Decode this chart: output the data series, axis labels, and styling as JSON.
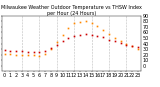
{
  "title": "Milwaukee Weather Outdoor Temperature vs THSW Index per Hour (24 Hours)",
  "hours": [
    0,
    1,
    2,
    3,
    4,
    5,
    6,
    7,
    8,
    9,
    10,
    11,
    12,
    13,
    14,
    15,
    16,
    17,
    18,
    19,
    20,
    21,
    22,
    23
  ],
  "temp": [
    28,
    27,
    26,
    26,
    25,
    25,
    25,
    27,
    32,
    38,
    44,
    50,
    54,
    56,
    57,
    56,
    54,
    51,
    47,
    44,
    41,
    38,
    35,
    33
  ],
  "thsw": [
    22,
    21,
    20,
    20,
    19,
    19,
    18,
    21,
    30,
    42,
    56,
    68,
    76,
    79,
    80,
    77,
    72,
    65,
    57,
    50,
    44,
    40,
    36,
    31
  ],
  "temp_color": "#cc0000",
  "thsw_color": "#ff8800",
  "black_color": "#000000",
  "background_color": "#ffffff",
  "grid_color": "#aaaaaa",
  "ylim_min": -10,
  "ylim_max": 90,
  "y_ticks": [
    0,
    10,
    20,
    30,
    40,
    50,
    60,
    70,
    80,
    90
  ],
  "y_tick_labels": [
    "0",
    "10",
    "20",
    "30",
    "40",
    "50",
    "60",
    "70",
    "80",
    "90"
  ],
  "tick_label_size": 3.5,
  "title_fontsize": 3.5,
  "marker_size": 1.2,
  "vgrid_hours": [
    3,
    6,
    9,
    12,
    15,
    18,
    21
  ]
}
